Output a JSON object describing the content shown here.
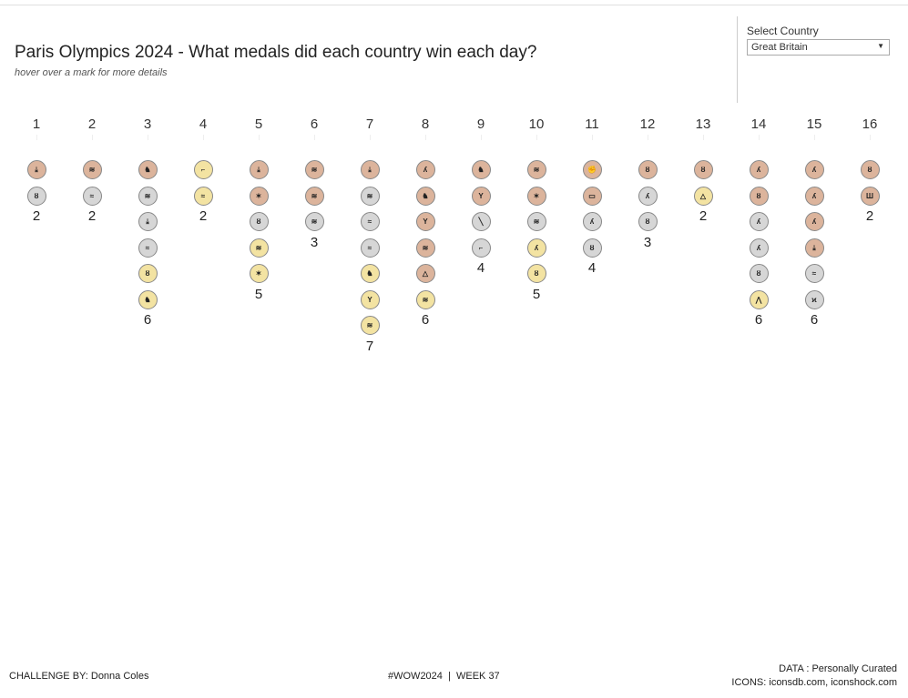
{
  "header": {
    "title": "Paris Olympics 2024 - What medals did each country win each day?",
    "subtitle": "hover over a mark for more details"
  },
  "filter": {
    "label": "Select Country",
    "value": "Great Britain"
  },
  "colors": {
    "bronze": "#dcb49c",
    "silver": "#d6d6d6",
    "gold": "#f3e3a2"
  },
  "days": [
    {
      "day": "1",
      "count": "2",
      "medals": [
        [
          "bronze",
          "diving"
        ],
        [
          "silver",
          "cycling"
        ]
      ]
    },
    {
      "day": "2",
      "count": "2",
      "medals": [
        [
          "bronze",
          "rowing"
        ],
        [
          "silver",
          "swimming"
        ]
      ]
    },
    {
      "day": "3",
      "count": "6",
      "medals": [
        [
          "bronze",
          "equestrian"
        ],
        [
          "silver",
          "rowing"
        ],
        [
          "silver",
          "diving"
        ],
        [
          "silver",
          "swimming"
        ],
        [
          "gold",
          "cycling"
        ],
        [
          "gold",
          "equestrian"
        ]
      ]
    },
    {
      "day": "4",
      "count": "2",
      "medals": [
        [
          "gold",
          "shooting"
        ],
        [
          "gold",
          "swimming"
        ]
      ]
    },
    {
      "day": "5",
      "count": "5",
      "medals": [
        [
          "bronze",
          "diving"
        ],
        [
          "bronze",
          "trampoline"
        ],
        [
          "silver",
          "cycling"
        ],
        [
          "gold",
          "rowing"
        ],
        [
          "gold",
          "trampoline"
        ]
      ]
    },
    {
      "day": "6",
      "count": "3",
      "medals": [
        [
          "bronze",
          "rowing"
        ],
        [
          "bronze",
          "rowing"
        ],
        [
          "silver",
          "rowing"
        ]
      ]
    },
    {
      "day": "7",
      "count": "7",
      "medals": [
        [
          "bronze",
          "diving"
        ],
        [
          "silver",
          "rowing"
        ],
        [
          "silver",
          "swimming"
        ],
        [
          "silver",
          "swimming"
        ],
        [
          "gold",
          "equestrian"
        ],
        [
          "gold",
          "gymnastics"
        ],
        [
          "gold",
          "rowing"
        ]
      ]
    },
    {
      "day": "8",
      "count": "6",
      "medals": [
        [
          "bronze",
          "athletics"
        ],
        [
          "bronze",
          "equestrian"
        ],
        [
          "bronze",
          "gymnastics"
        ],
        [
          "bronze",
          "rowing"
        ],
        [
          "bronze",
          "sailing"
        ],
        [
          "gold",
          "rowing"
        ]
      ]
    },
    {
      "day": "9",
      "count": "4",
      "medals": [
        [
          "bronze",
          "equestrian"
        ],
        [
          "bronze",
          "gymnastics"
        ],
        [
          "silver",
          "fencing"
        ],
        [
          "silver",
          "shooting"
        ]
      ]
    },
    {
      "day": "10",
      "count": "5",
      "medals": [
        [
          "bronze",
          "rowing"
        ],
        [
          "bronze",
          "trampoline"
        ],
        [
          "silver",
          "rowing"
        ],
        [
          "gold",
          "athletics"
        ],
        [
          "gold",
          "cycling"
        ]
      ]
    },
    {
      "day": "11",
      "count": "4",
      "medals": [
        [
          "bronze",
          "boxing"
        ],
        [
          "bronze",
          "skateboarding"
        ],
        [
          "silver",
          "athletics"
        ],
        [
          "silver",
          "cycling"
        ]
      ]
    },
    {
      "day": "12",
      "count": "3",
      "medals": [
        [
          "bronze",
          "cycling"
        ],
        [
          "silver",
          "athletics"
        ],
        [
          "silver",
          "cycling"
        ]
      ]
    },
    {
      "day": "13",
      "count": "2",
      "medals": [
        [
          "bronze",
          "cycling"
        ],
        [
          "gold",
          "sailing"
        ]
      ]
    },
    {
      "day": "14",
      "count": "6",
      "medals": [
        [
          "bronze",
          "athletics"
        ],
        [
          "bronze",
          "cycling"
        ],
        [
          "silver",
          "athletics"
        ],
        [
          "silver",
          "athletics"
        ],
        [
          "silver",
          "cycling"
        ],
        [
          "gold",
          "climbing"
        ]
      ]
    },
    {
      "day": "15",
      "count": "6",
      "medals": [
        [
          "bronze",
          "athletics"
        ],
        [
          "bronze",
          "athletics"
        ],
        [
          "bronze",
          "athletics"
        ],
        [
          "bronze",
          "diving"
        ],
        [
          "silver",
          "swimming"
        ],
        [
          "silver",
          "taekwondo"
        ]
      ]
    },
    {
      "day": "16",
      "count": "2",
      "medals": [
        [
          "bronze",
          "cycling"
        ],
        [
          "bronze",
          "weightlifting"
        ]
      ]
    }
  ],
  "footer": {
    "challenge": "CHALLENGE BY: Donna Coles",
    "tag": "#WOW2024  |  WEEK 37",
    "data": "DATA : Personally Curated",
    "icons": "ICONS: iconsdb.com, iconshock.com"
  }
}
